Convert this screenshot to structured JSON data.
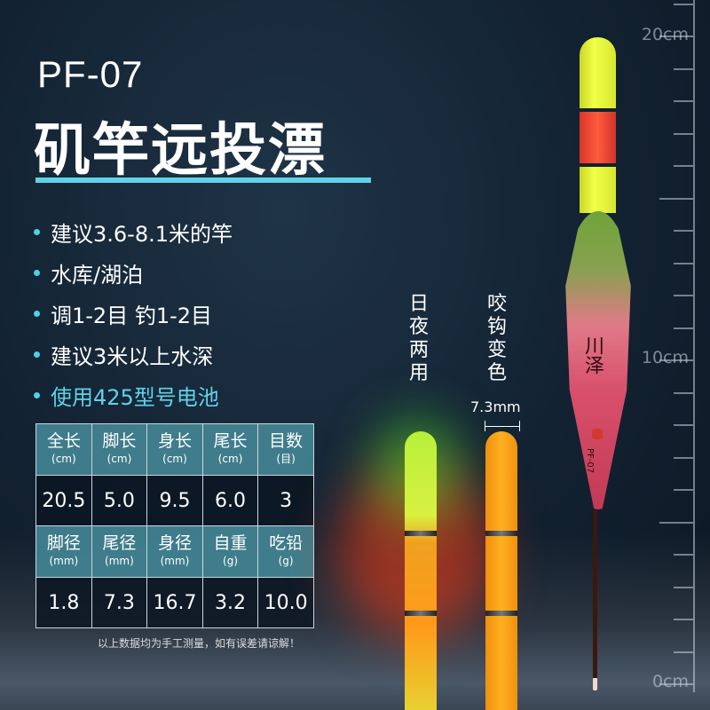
{
  "model": "PF-07",
  "title": "矶竿远投漂",
  "features": [
    "建议3.6-8.1米的竿",
    "水库/湖泊",
    "调1-2目 钓1-2目",
    "建议3米以上水深",
    "使用425型号电池"
  ],
  "table": {
    "row1_headers": [
      [
        "全长",
        "(cm)"
      ],
      [
        "脚长",
        "(cm)"
      ],
      [
        "身长",
        "(cm)"
      ],
      [
        "尾长",
        "(cm)"
      ],
      [
        "目数",
        "(目)"
      ]
    ],
    "row1_values": [
      "20.5",
      "5.0",
      "9.5",
      "6.0",
      "3"
    ],
    "row2_headers": [
      [
        "脚径",
        "(mm)"
      ],
      [
        "尾径",
        "(mm)"
      ],
      [
        "身径",
        "(mm)"
      ],
      [
        "自重",
        "(g)"
      ],
      [
        "吃铅",
        "(g)"
      ]
    ],
    "row2_values": [
      "1.8",
      "7.3",
      "16.7",
      "3.2",
      "10.0"
    ]
  },
  "note": "以上数据均为手工测量，如有误差请谅解！",
  "label_day_night": "日夜两用",
  "label_bite_color": "咬钩变色",
  "tail_diameter": "7.3mm",
  "ruler": {
    "labels": [
      "20cm",
      "10cm",
      "0cm"
    ]
  },
  "float_brand": "川泽",
  "float_model": "PF-07",
  "colors": {
    "accent": "#5fd3e8",
    "header_cell": "#468c9b"
  }
}
